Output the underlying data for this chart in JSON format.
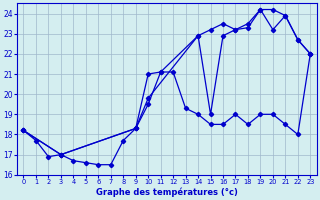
{
  "xlabel": "Graphe des températures (°c)",
  "xlim": [
    -0.5,
    23.5
  ],
  "ylim": [
    16,
    24.5
  ],
  "xticks": [
    0,
    1,
    2,
    3,
    4,
    5,
    6,
    7,
    8,
    9,
    10,
    11,
    12,
    13,
    14,
    15,
    16,
    17,
    18,
    19,
    20,
    21,
    22,
    23
  ],
  "yticks": [
    16,
    17,
    18,
    19,
    20,
    21,
    22,
    23,
    24
  ],
  "bg_color": "#d4eef0",
  "grid_color": "#a0b8cc",
  "line_color": "#0000cc",
  "line1_x": [
    0,
    1,
    2,
    3,
    4,
    5,
    6,
    7,
    8,
    9,
    10,
    11,
    12,
    13,
    14,
    15,
    16,
    17,
    18,
    19,
    20,
    21,
    22,
    23
  ],
  "line1_y": [
    18.2,
    17.7,
    16.9,
    17.0,
    16.7,
    16.6,
    16.5,
    16.5,
    17.7,
    18.3,
    19.5,
    21.1,
    21.1,
    19.3,
    19.0,
    18.5,
    18.5,
    19.0,
    18.5,
    19.0,
    19.0,
    18.5,
    18.0,
    22.0
  ],
  "line2_x": [
    0,
    3,
    9,
    10,
    11,
    14,
    15,
    16,
    17,
    18,
    19,
    20,
    21,
    22,
    23
  ],
  "line2_y": [
    18.2,
    17.0,
    18.3,
    21.0,
    21.1,
    22.9,
    23.2,
    23.5,
    23.2,
    23.5,
    24.2,
    23.2,
    23.9,
    22.7,
    22.0
  ],
  "line3_x": [
    0,
    3,
    9,
    10,
    14,
    15,
    16,
    17,
    18,
    19,
    20,
    21,
    22,
    23
  ],
  "line3_y": [
    18.2,
    17.0,
    18.3,
    19.8,
    22.9,
    19.0,
    22.9,
    23.2,
    23.3,
    24.2,
    24.2,
    23.9,
    22.7,
    22.0
  ]
}
